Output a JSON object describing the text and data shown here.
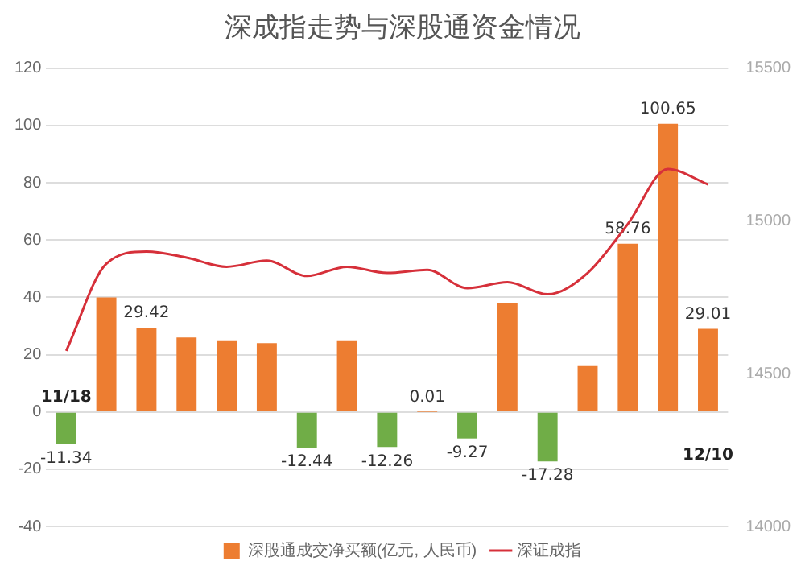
{
  "chart_data": {
    "type": "bar",
    "title": "深成指走势与深股通资金情况",
    "categories": [
      "11/18",
      null,
      null,
      null,
      null,
      null,
      null,
      null,
      null,
      null,
      null,
      null,
      null,
      null,
      null,
      null,
      "12/10"
    ],
    "series": [
      {
        "name": "深股通成交净买额(亿元, 人民币)",
        "colors": [
          "#70ad47",
          "#ed7d31",
          "#ed7d31",
          "#ed7d31",
          "#ed7d31",
          "#ed7d31",
          "#70ad47",
          "#ed7d31",
          "#70ad47",
          "#ed7d31",
          "#70ad47",
          "#ed7d31",
          "#70ad47",
          "#ed7d31",
          "#ed7d31",
          "#ed7d31",
          "#ed7d31"
        ],
        "color": "#ed7d31",
        "values": [
          -11.34,
          40,
          29.42,
          26,
          25,
          24,
          -12.44,
          25,
          -12.26,
          0.01,
          -9.27,
          38,
          -17.28,
          16,
          58.76,
          100.65,
          29.01
        ],
        "value_labels": [
          "-11.34",
          null,
          "29.42",
          null,
          null,
          null,
          "-12.44",
          null,
          "-12.26",
          "0.01",
          "-9.27",
          null,
          "-17.28",
          null,
          "58.76",
          "100.65",
          "29.01"
        ]
      },
      {
        "name": "深证成指",
        "type": "line",
        "axis": "y2",
        "color": "#d6303a",
        "values": [
          14575,
          14860,
          14900,
          14880,
          14850,
          14870,
          14820,
          14850,
          14830,
          14840,
          14780,
          14800,
          14760,
          14830,
          14990,
          15170,
          15120
        ]
      }
    ],
    "ylim": [
      -40,
      120
    ],
    "yticks": [
      -40,
      -20,
      0,
      20,
      40,
      60,
      80,
      100,
      120
    ],
    "y2lim": [
      14000,
      15500
    ],
    "y2ticks": [
      14000,
      14500,
      15000,
      15500
    ],
    "grid": "y",
    "legend": "bottom",
    "marker": "none",
    "line_style": "solid"
  }
}
